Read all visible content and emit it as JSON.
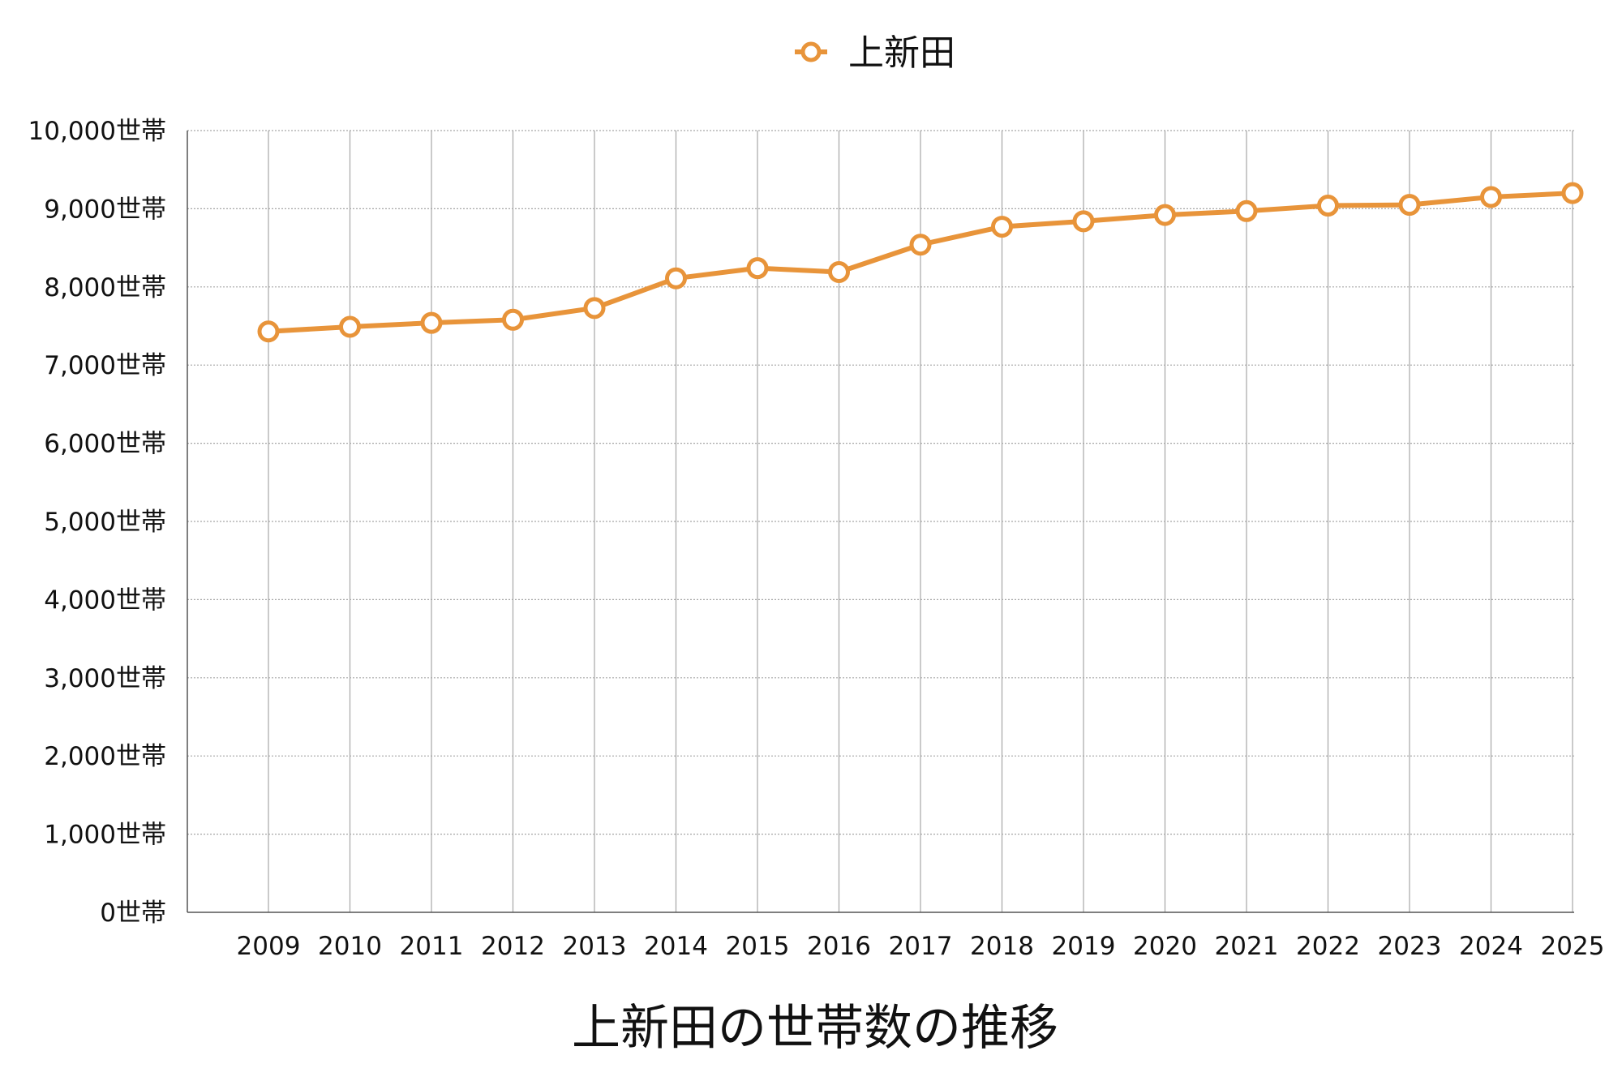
{
  "chart_data": {
    "type": "line",
    "title": "上新田の世帯数の推移",
    "xlabel": "",
    "ylabel": "",
    "x": [
      "2009",
      "2010",
      "2011",
      "2012",
      "2013",
      "2014",
      "2015",
      "2016",
      "2017",
      "2018",
      "2019",
      "2020",
      "2021",
      "2022",
      "2023",
      "2024",
      "2025"
    ],
    "series": [
      {
        "name": "上新田",
        "values": [
          7430,
          7490,
          7540,
          7580,
          7730,
          8110,
          8240,
          8190,
          8540,
          8770,
          8840,
          8920,
          8970,
          9040,
          9050,
          9150,
          9200
        ]
      }
    ],
    "ylim": [
      0,
      10000
    ],
    "yticks": [
      "0世帯",
      "1,000世帯",
      "2,000世帯",
      "3,000世帯",
      "4,000世帯",
      "5,000世帯",
      "6,000世帯",
      "7,000世帯",
      "8,000世帯",
      "9,000世帯",
      "10,000世帯"
    ],
    "legend_position": "top-center",
    "grid": true,
    "colors": {
      "series": "#e8943a",
      "grid": "#a6a6a6",
      "axis": "#555555",
      "marker_fill": "#ffffff"
    }
  }
}
